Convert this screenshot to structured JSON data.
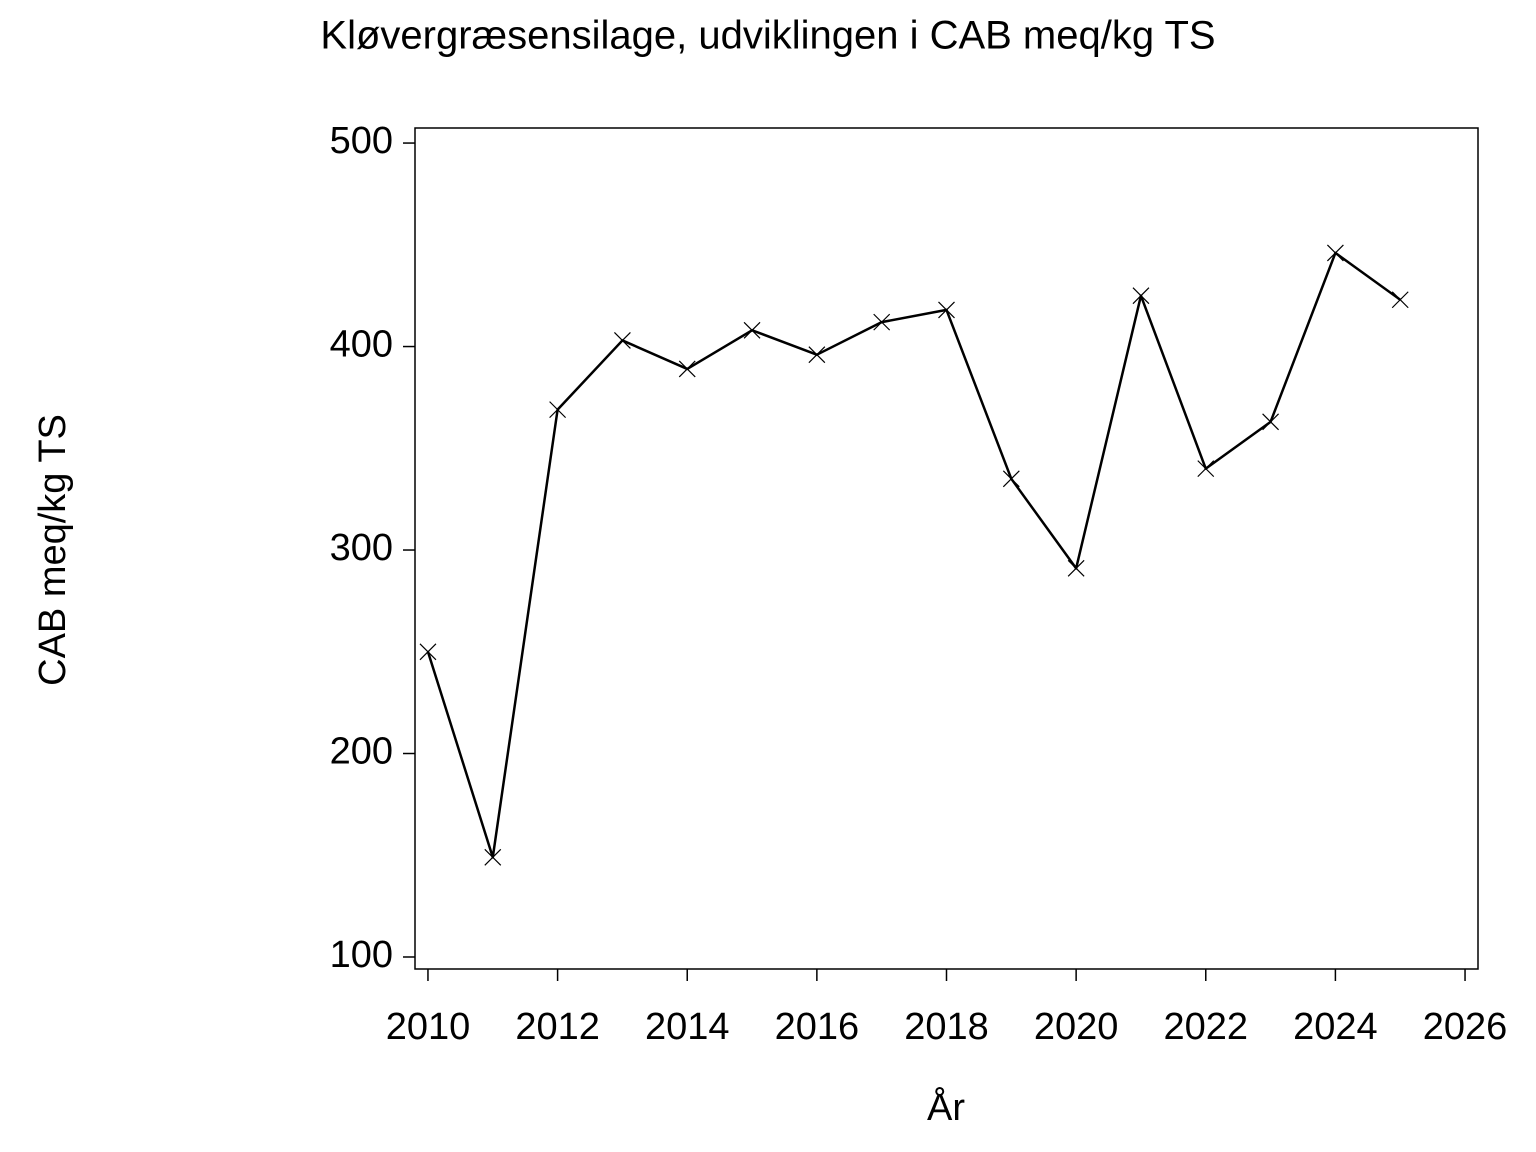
{
  "chart_data": {
    "type": "line",
    "title": "Kløvergræsensilage,  udviklingen  i  CAB  meq/kg  TS",
    "xlabel": "År",
    "ylabel": "CAB  meq/kg  TS",
    "x": [
      2010,
      2011,
      2012,
      2013,
      2014,
      2015,
      2016,
      2017,
      2018,
      2019,
      2020,
      2021,
      2022,
      2023,
      2024,
      2025
    ],
    "series": [
      {
        "name": "CAB",
        "color": "#000000",
        "values": [
          250,
          149,
          369,
          403,
          389,
          408,
          396,
          412,
          418,
          335,
          291,
          425,
          340,
          363,
          446,
          423
        ]
      }
    ],
    "xlim": [
      2009.8,
      2026.2
    ],
    "xticks": [
      2010,
      2012,
      2014,
      2016,
      2018,
      2020,
      2022,
      2024,
      2026
    ],
    "ylim": [
      94.1,
      507.4
    ],
    "yticks": [
      100,
      200,
      300,
      400,
      500
    ],
    "marker": "x",
    "grid": false
  }
}
